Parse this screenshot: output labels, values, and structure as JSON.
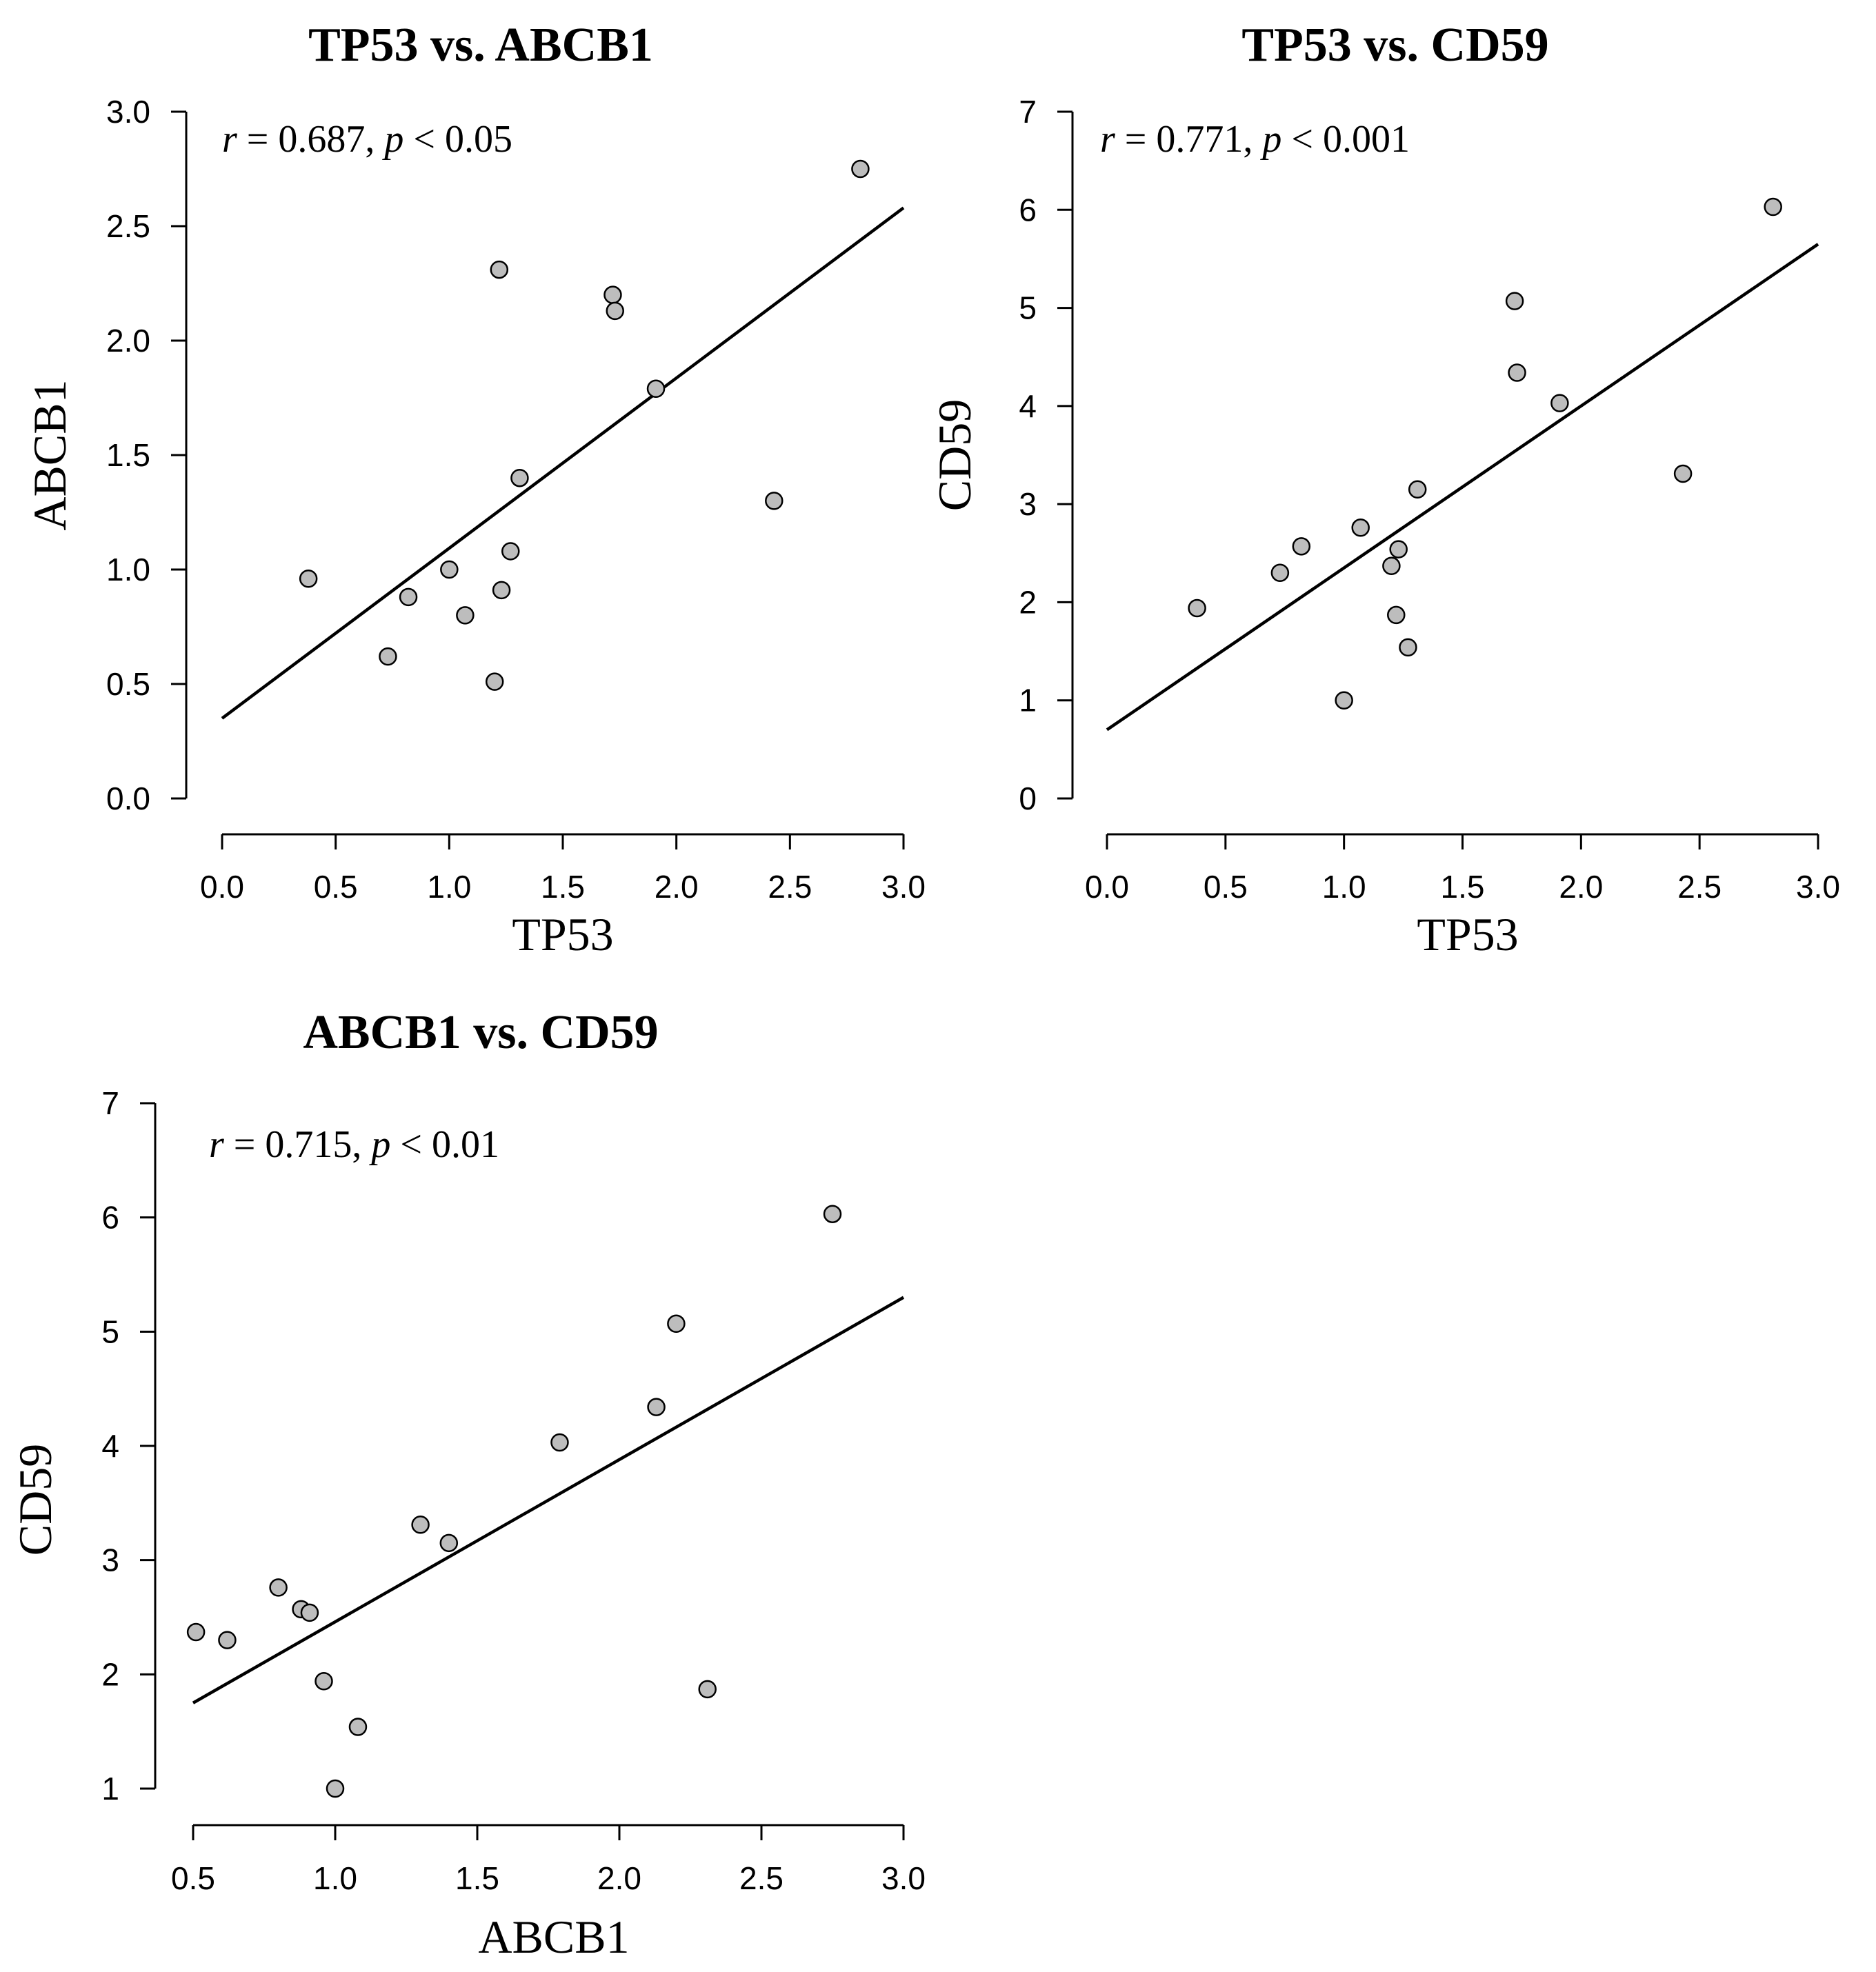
{
  "colors": {
    "point_fill": "#bdbdbd",
    "point_stroke": "#000000",
    "line": "#000000",
    "background": "#ffffff"
  },
  "chart_data": [
    {
      "type": "scatter",
      "title": "TP53 vs. ABCB1",
      "xlabel": "TP53",
      "ylabel": "ABCB1",
      "xlim": [
        0.0,
        3.0
      ],
      "ylim": [
        0.0,
        3.0
      ],
      "xticks": [
        0.0,
        0.5,
        1.0,
        1.5,
        2.0,
        2.5,
        3.0
      ],
      "xtick_labels": [
        "0.0",
        "0.5",
        "1.0",
        "1.5",
        "2.0",
        "2.5",
        "3.0"
      ],
      "yticks": [
        0.0,
        0.5,
        1.0,
        1.5,
        2.0,
        2.5,
        3.0
      ],
      "ytick_labels": [
        "0.0",
        "0.5",
        "1.0",
        "1.5",
        "2.0",
        "2.5",
        "3.0"
      ],
      "annotation": {
        "r_symbol": "r",
        "r_text": " = 0.687, ",
        "p_symbol": "p",
        "p_text": " < 0.05"
      },
      "regression": {
        "x": [
          0.0,
          3.0
        ],
        "y": [
          0.35,
          2.58
        ]
      },
      "points": [
        {
          "x": 0.38,
          "y": 0.96
        },
        {
          "x": 0.73,
          "y": 0.62
        },
        {
          "x": 0.82,
          "y": 0.88
        },
        {
          "x": 1.0,
          "y": 1.0
        },
        {
          "x": 1.07,
          "y": 0.8
        },
        {
          "x": 1.2,
          "y": 0.51
        },
        {
          "x": 1.22,
          "y": 2.31
        },
        {
          "x": 1.23,
          "y": 0.91
        },
        {
          "x": 1.27,
          "y": 1.08
        },
        {
          "x": 1.31,
          "y": 1.4
        },
        {
          "x": 1.72,
          "y": 2.2
        },
        {
          "x": 1.73,
          "y": 2.13
        },
        {
          "x": 1.91,
          "y": 1.79
        },
        {
          "x": 2.43,
          "y": 1.3
        },
        {
          "x": 2.81,
          "y": 2.75
        }
      ]
    },
    {
      "type": "scatter",
      "title": "TP53 vs. CD59",
      "xlabel": "TP53",
      "ylabel": "CD59",
      "xlim": [
        0.0,
        3.0
      ],
      "ylim": [
        0,
        7
      ],
      "xticks": [
        0.0,
        0.5,
        1.0,
        1.5,
        2.0,
        2.5,
        3.0
      ],
      "xtick_labels": [
        "0.0",
        "0.5",
        "1.0",
        "1.5",
        "2.0",
        "2.5",
        "3.0"
      ],
      "yticks": [
        0,
        1,
        2,
        3,
        4,
        5,
        6,
        7
      ],
      "ytick_labels": [
        "0",
        "1",
        "2",
        "3",
        "4",
        "5",
        "6",
        "7"
      ],
      "annotation": {
        "r_symbol": "r",
        "r_text": " = 0.771, ",
        "p_symbol": "p",
        "p_text": " < 0.001"
      },
      "regression": {
        "x": [
          0.0,
          3.0
        ],
        "y": [
          0.7,
          5.65
        ]
      },
      "points": [
        {
          "x": 0.38,
          "y": 1.94
        },
        {
          "x": 0.73,
          "y": 2.3
        },
        {
          "x": 0.82,
          "y": 2.57
        },
        {
          "x": 1.0,
          "y": 1.0
        },
        {
          "x": 1.07,
          "y": 2.76
        },
        {
          "x": 1.2,
          "y": 2.37
        },
        {
          "x": 1.22,
          "y": 1.87
        },
        {
          "x": 1.23,
          "y": 2.54
        },
        {
          "x": 1.27,
          "y": 1.54
        },
        {
          "x": 1.31,
          "y": 3.15
        },
        {
          "x": 1.72,
          "y": 5.07
        },
        {
          "x": 1.73,
          "y": 4.34
        },
        {
          "x": 1.91,
          "y": 4.03
        },
        {
          "x": 2.43,
          "y": 3.31
        },
        {
          "x": 2.81,
          "y": 6.03
        }
      ]
    },
    {
      "type": "scatter",
      "title": "ABCB1 vs. CD59",
      "xlabel": "ABCB1",
      "ylabel": "CD59",
      "xlim": [
        0.5,
        3.0
      ],
      "ylim": [
        1,
        7
      ],
      "xticks": [
        0.5,
        1.0,
        1.5,
        2.0,
        2.5,
        3.0
      ],
      "xtick_labels": [
        "0.5",
        "1.0",
        "1.5",
        "2.0",
        "2.5",
        "3.0"
      ],
      "yticks": [
        1,
        2,
        3,
        4,
        5,
        6,
        7
      ],
      "ytick_labels": [
        "1",
        "2",
        "3",
        "4",
        "5",
        "6",
        "7"
      ],
      "annotation": {
        "r_symbol": "r",
        "r_text": " = 0.715, ",
        "p_symbol": "p",
        "p_text": " < 0.01"
      },
      "regression": {
        "x": [
          0.5,
          3.0
        ],
        "y": [
          1.75,
          5.3
        ]
      },
      "points": [
        {
          "x": 0.51,
          "y": 2.37
        },
        {
          "x": 0.62,
          "y": 2.3
        },
        {
          "x": 0.8,
          "y": 2.76
        },
        {
          "x": 0.88,
          "y": 2.57
        },
        {
          "x": 0.91,
          "y": 2.54
        },
        {
          "x": 0.96,
          "y": 1.94
        },
        {
          "x": 1.0,
          "y": 1.0
        },
        {
          "x": 1.08,
          "y": 1.54
        },
        {
          "x": 1.3,
          "y": 3.31
        },
        {
          "x": 1.4,
          "y": 3.15
        },
        {
          "x": 1.79,
          "y": 4.03
        },
        {
          "x": 2.13,
          "y": 4.34
        },
        {
          "x": 2.2,
          "y": 5.07
        },
        {
          "x": 2.31,
          "y": 1.87
        },
        {
          "x": 2.75,
          "y": 6.03
        }
      ]
    }
  ]
}
